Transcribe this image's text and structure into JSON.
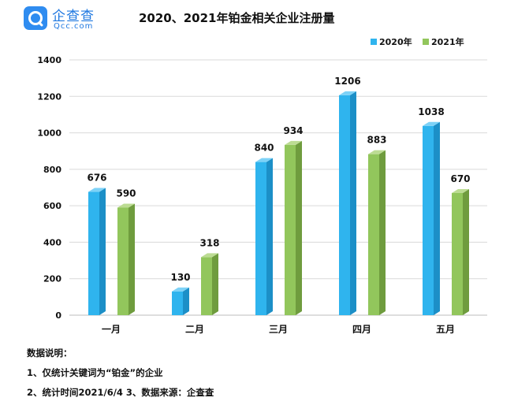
{
  "logo": {
    "cn": "企查查",
    "en": "Qcc.com"
  },
  "notes": {
    "heading": "数据说明：",
    "line1": "1、仅统计关键词为“铂金”的企业",
    "line2": "2、统计时间2021/6/4   3、数据来源：企查查"
  },
  "colors": {
    "series_2020": "#2fb4ee",
    "series_2021": "#92c65c"
  },
  "chart_data": {
    "type": "bar",
    "title": "2020、2021年铂金相关企业注册量",
    "xlabel": "",
    "ylabel": "",
    "ylim": [
      0,
      1400
    ],
    "yticks": [
      0,
      200,
      400,
      600,
      800,
      1000,
      1200,
      1400
    ],
    "grid": true,
    "legend": "top-right",
    "categories": [
      "一月",
      "二月",
      "三月",
      "四月",
      "五月"
    ],
    "series": [
      {
        "name": "2020年",
        "values": [
          676,
          130,
          840,
          1206,
          1038
        ]
      },
      {
        "name": "2021年",
        "values": [
          590,
          318,
          934,
          883,
          670
        ]
      }
    ]
  }
}
